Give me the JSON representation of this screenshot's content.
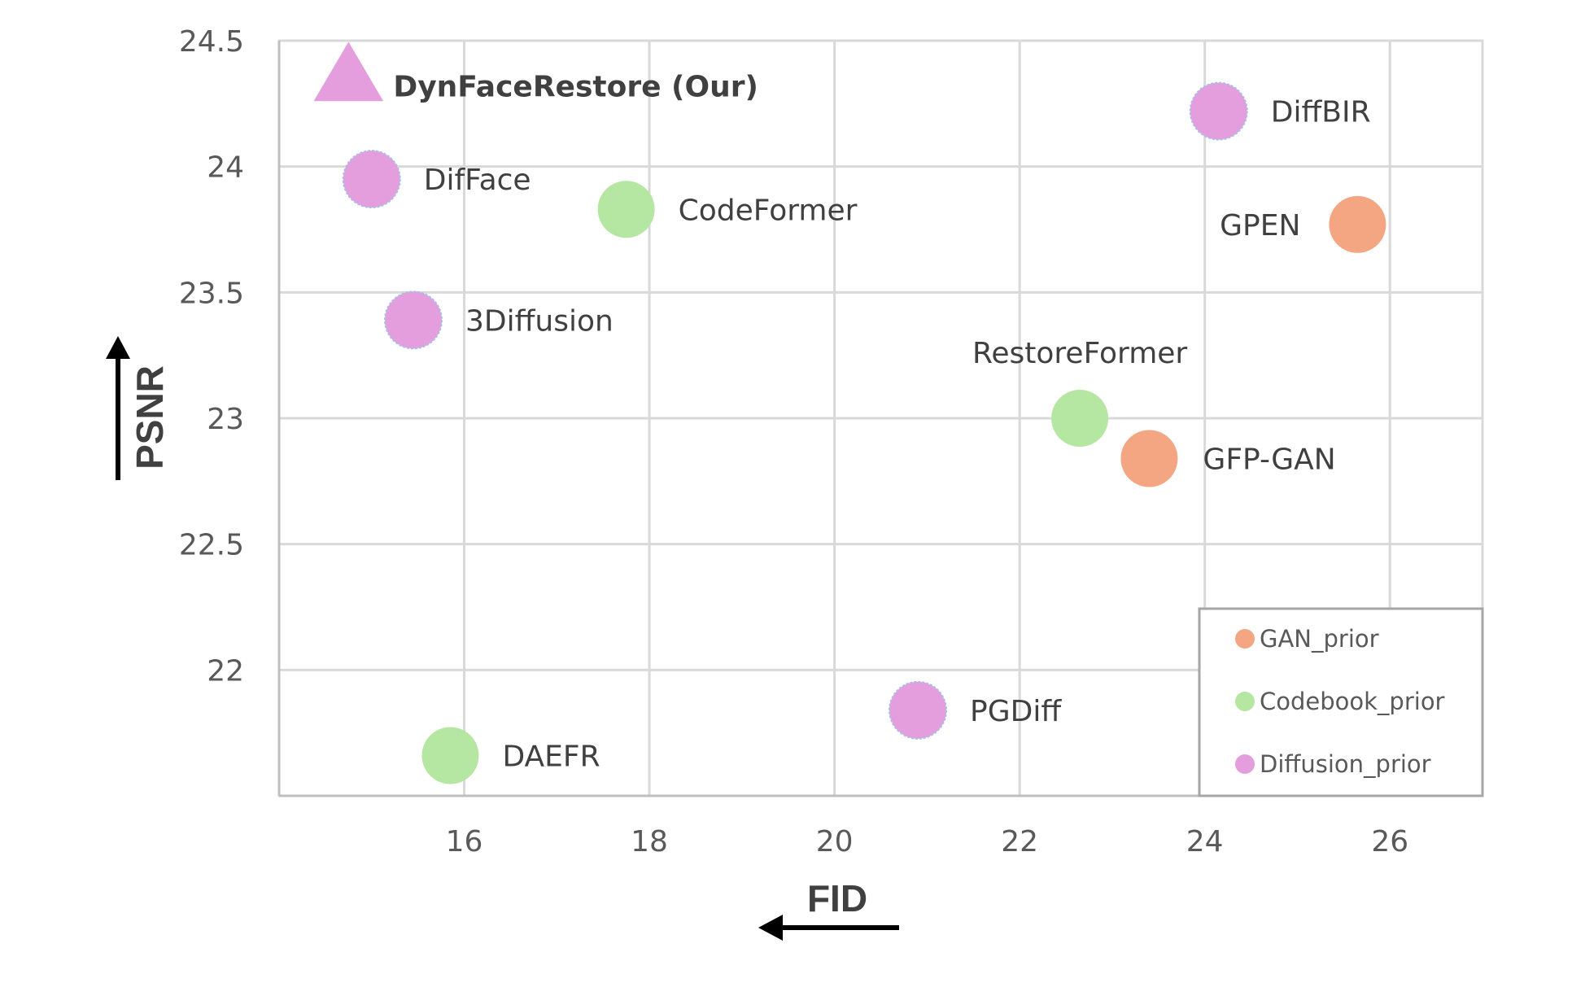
{
  "chart_data": {
    "type": "scatter",
    "xlabel": "FID",
    "ylabel": "PSNR",
    "xlim": [
      14,
      27
    ],
    "ylim": [
      21.5,
      24.5
    ],
    "x_ticks": [
      "16",
      "18",
      "20",
      "22",
      "24",
      "26"
    ],
    "y_ticks": [
      "22",
      "22.5",
      "23",
      "23.5",
      "24",
      "24.5"
    ],
    "grid": true,
    "legend_position": "bottom-right",
    "series": [
      {
        "name": "GAN_prior",
        "color": "#F4A582",
        "points": [
          {
            "label": "GPEN",
            "x": 25.65,
            "y": 23.77
          },
          {
            "label": "GFP-GAN",
            "x": 23.4,
            "y": 22.84
          }
        ]
      },
      {
        "name": "Codebook_prior",
        "color": "#B5E6A2",
        "points": [
          {
            "label": "CodeFormer",
            "x": 17.75,
            "y": 23.83
          },
          {
            "label": "RestoreFormer",
            "x": 22.65,
            "y": 23.0
          },
          {
            "label": "DAEFR",
            "x": 15.85,
            "y": 21.66
          }
        ]
      },
      {
        "name": "Diffusion_prior",
        "color": "#E59EDD",
        "points": [
          {
            "label": "DynFaceRestore (Our)",
            "x": 14.75,
            "y": 24.35,
            "marker": "triangle",
            "bold": true
          },
          {
            "label": "DiffBIR",
            "x": 24.15,
            "y": 24.22
          },
          {
            "label": "DifFace",
            "x": 15.0,
            "y": 23.95
          },
          {
            "label": "3Diffusion",
            "x": 15.45,
            "y": 23.39
          },
          {
            "label": "PGDiff",
            "x": 20.9,
            "y": 21.84
          }
        ]
      }
    ]
  }
}
